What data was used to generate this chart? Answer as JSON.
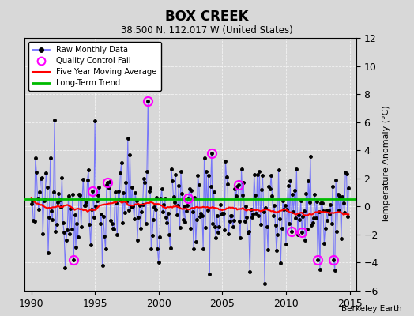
{
  "title": "BOX CREEK",
  "subtitle": "38.500 N, 112.017 W (United States)",
  "ylabel": "Temperature Anomaly (°C)",
  "credit": "Berkeley Earth",
  "xlim": [
    1989.5,
    2015.5
  ],
  "ylim": [
    -6,
    12
  ],
  "yticks": [
    -6,
    -4,
    -2,
    0,
    2,
    4,
    6,
    8,
    10,
    12
  ],
  "xticks": [
    1990,
    1995,
    2000,
    2005,
    2010,
    2015
  ],
  "background_color": "#d8d8d8",
  "plot_bg_color": "#d8d8d8",
  "line_color": "#6666ff",
  "dot_color": "#000000",
  "ma_color": "#ff0000",
  "trend_color": "#00bb00",
  "qc_color": "#ff00ff",
  "seed": 12345,
  "n_months": 300,
  "start_year": 1990,
  "qc_fail_indices": [
    40,
    58,
    72,
    110,
    148,
    170,
    195,
    245,
    255,
    270,
    285
  ],
  "figwidth": 5.24,
  "figheight": 4.0,
  "dpi": 100
}
